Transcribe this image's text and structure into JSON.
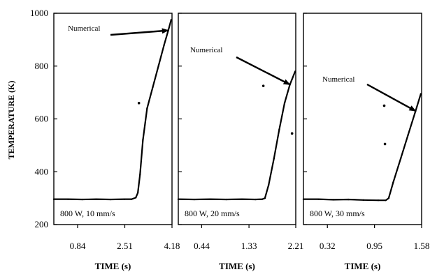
{
  "chart_data": {
    "type": "line",
    "ylabel": "TEMPERATURE (K)",
    "ylim": [
      200,
      1000
    ],
    "yticks": [
      200,
      400,
      600,
      800,
      1000
    ],
    "panels": [
      {
        "condition": "800 W, 10 mm/s",
        "xlabel": "TIME (s)",
        "xlim": [
          0,
          4.18
        ],
        "xticks": [
          "0.84",
          "2.51",
          "4.18"
        ],
        "annotation": "Numerical",
        "series": [
          {
            "x": [
              0.0,
              0.5,
              1.0,
              1.5,
              2.0,
              2.5,
              2.75,
              2.9,
              2.97,
              3.05,
              3.15,
              3.3,
              3.5,
              3.7,
              3.9,
              4.05,
              4.15
            ],
            "y": [
              296,
              296,
              295,
              296,
              295,
              296,
              296,
              302,
              320,
              390,
              520,
              640,
              720,
              800,
              880,
              935,
              975
            ]
          }
        ],
        "outliers": [
          {
            "x": 3.01,
            "y": 660
          }
        ]
      },
      {
        "condition": "800 W, 20 mm/s",
        "xlabel": "TIME (s)",
        "xlim": [
          0,
          2.21
        ],
        "xticks": [
          "0.44",
          "1.33",
          "2.21"
        ],
        "annotation": "Numerical",
        "series": [
          {
            "x": [
              0.0,
              0.3,
              0.6,
              0.9,
              1.2,
              1.45,
              1.58,
              1.63,
              1.7,
              1.8,
              1.9,
              2.0,
              2.1,
              2.2
            ],
            "y": [
              296,
              295,
              296,
              295,
              296,
              295,
              296,
              300,
              350,
              450,
              560,
              660,
              730,
              780
            ]
          }
        ],
        "outliers": [
          {
            "x": 1.6,
            "y": 725
          },
          {
            "x": 2.14,
            "y": 545
          }
        ]
      },
      {
        "condition": "800 W, 30 mm/s",
        "xlabel": "TIME (s)",
        "xlim": [
          0,
          1.58
        ],
        "xticks": [
          "0.32",
          "0.95",
          "1.58"
        ],
        "annotation": "Numerical",
        "series": [
          {
            "x": [
              0.0,
              0.2,
              0.4,
              0.6,
              0.8,
              1.0,
              1.1,
              1.14,
              1.2,
              1.3,
              1.4,
              1.5,
              1.57
            ],
            "y": [
              296,
              296,
              294,
              295,
              293,
              292,
              292,
              300,
              360,
              450,
              540,
              630,
              695
            ]
          }
        ],
        "outliers": [
          {
            "x": 1.08,
            "y": 650
          },
          {
            "x": 1.09,
            "y": 505
          }
        ]
      }
    ]
  }
}
